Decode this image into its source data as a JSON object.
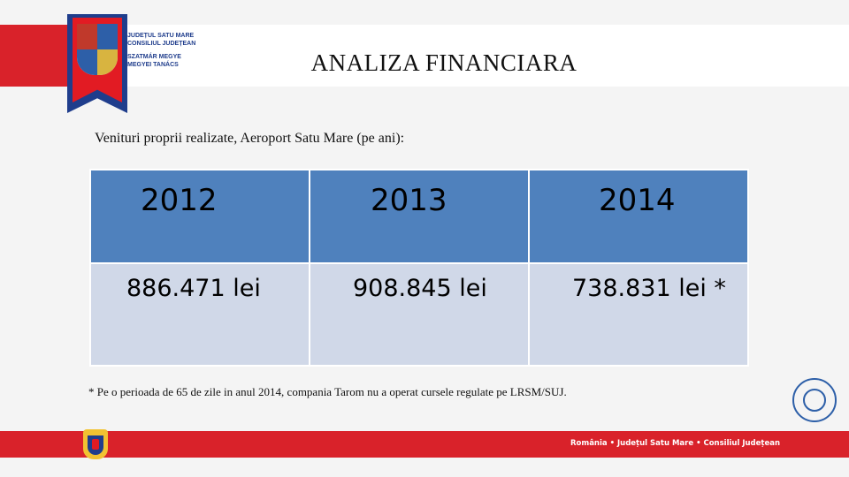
{
  "header": {
    "org_lines": [
      "JUDEȚUL SATU MARE",
      "CONSILIUL JUDEȚEAN",
      "SZATMÁR MEGYE",
      "MEGYEI TANÁCS"
    ],
    "title": "ANALIZA FINANCIARA"
  },
  "main": {
    "subtitle": "Venituri proprii realizate, Aeroport Satu Mare (pe ani):",
    "table": {
      "years": [
        "2012",
        "2013",
        "2014"
      ],
      "values": [
        "886.471 lei",
        "908.845 lei",
        "738.831 lei *"
      ]
    },
    "footnote": "* Pe o perioada de 65 de zile in anul 2014, compania Tarom nu a operat cursele regulate pe LRSM/SUJ."
  },
  "footer": {
    "text": "România • Județul Satu Mare • Consiliul Județean"
  },
  "colors": {
    "brand_red": "#d9222a",
    "brand_blue": "#1f3d8c",
    "table_header": "#4f81bd",
    "table_body": "#d0d8e8"
  },
  "icons": [
    "county-coat-of-arms-icon",
    "airport-seal-icon",
    "romania-coat-of-arms-icon"
  ]
}
